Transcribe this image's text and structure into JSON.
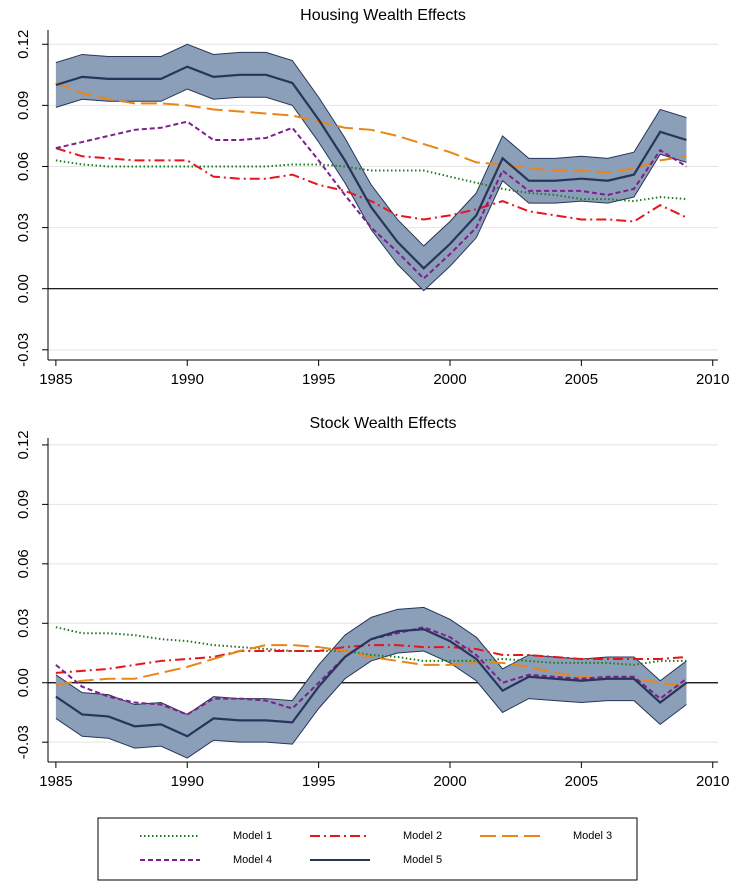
{
  "chart_data": [
    {
      "type": "line",
      "title": "Housing Wealth Effects",
      "x": [
        1985,
        1986,
        1987,
        1988,
        1989,
        1990,
        1991,
        1992,
        1993,
        1994,
        1995,
        1996,
        1997,
        1998,
        1999,
        2000,
        2001,
        2002,
        2003,
        2004,
        2005,
        2006,
        2007,
        2008,
        2009
      ],
      "xlim": [
        1984.7,
        2010.2
      ],
      "xticks": [
        1985,
        1990,
        1995,
        2000,
        2005,
        2010
      ],
      "ylim": [
        -0.035,
        0.127
      ],
      "yticks": [
        {
          "value": -0.03,
          "label": "-0.03"
        },
        {
          "value": 0,
          "label": "0.00"
        },
        {
          "value": 0.03,
          "label": "0.03"
        },
        {
          "value": 0.06,
          "label": "0.06"
        },
        {
          "value": 0.09,
          "label": "0.09"
        },
        {
          "value": 0.12,
          "label": "0.12"
        }
      ],
      "grid": true,
      "series": [
        {
          "name": "Model 1",
          "color": "#1e7a1e",
          "style": "dotted",
          "values": [
            0.063,
            0.061,
            0.06,
            0.06,
            0.06,
            0.06,
            0.06,
            0.06,
            0.06,
            0.061,
            0.061,
            0.06,
            0.058,
            0.058,
            0.058,
            0.055,
            0.052,
            0.049,
            0.047,
            0.046,
            0.044,
            0.044,
            0.043,
            0.045,
            0.044
          ]
        },
        {
          "name": "Model 2",
          "color": "#e8141c",
          "style": "dashdot",
          "values": [
            0.069,
            0.065,
            0.064,
            0.063,
            0.063,
            0.063,
            0.055,
            0.054,
            0.054,
            0.056,
            0.051,
            0.048,
            0.043,
            0.036,
            0.034,
            0.036,
            0.039,
            0.043,
            0.038,
            0.036,
            0.034,
            0.034,
            0.033,
            0.041,
            0.035
          ]
        },
        {
          "name": "Model 3",
          "color": "#e8861a",
          "style": "longdash",
          "values": [
            0.101,
            0.096,
            0.093,
            0.091,
            0.091,
            0.09,
            0.088,
            0.087,
            0.086,
            0.085,
            0.082,
            0.079,
            0.078,
            0.075,
            0.071,
            0.067,
            0.062,
            0.061,
            0.059,
            0.058,
            0.058,
            0.057,
            0.059,
            0.063,
            0.065
          ]
        },
        {
          "name": "Model 4",
          "color": "#7d1f8e",
          "style": "dash",
          "values": [
            0.069,
            0.072,
            0.075,
            0.078,
            0.079,
            0.082,
            0.073,
            0.073,
            0.074,
            0.079,
            0.063,
            0.046,
            0.03,
            0.018,
            0.005,
            0.017,
            0.03,
            0.058,
            0.048,
            0.048,
            0.048,
            0.046,
            0.049,
            0.068,
            0.06
          ]
        },
        {
          "name": "Model 5",
          "color": "#27355a",
          "style": "solid",
          "band_color": "#8c9fb8",
          "values": [
            0.1,
            0.104,
            0.103,
            0.103,
            0.103,
            0.109,
            0.104,
            0.105,
            0.105,
            0.101,
            0.083,
            0.063,
            0.04,
            0.023,
            0.01,
            0.022,
            0.036,
            0.064,
            0.053,
            0.053,
            0.054,
            0.053,
            0.056,
            0.077,
            0.073
          ],
          "band": {
            "upper": [
              0.111,
              0.115,
              0.114,
              0.114,
              0.114,
              0.12,
              0.115,
              0.116,
              0.116,
              0.112,
              0.094,
              0.074,
              0.051,
              0.034,
              0.021,
              0.033,
              0.047,
              0.075,
              0.064,
              0.064,
              0.065,
              0.064,
              0.067,
              0.088,
              0.084
            ],
            "lower": [
              0.089,
              0.093,
              0.092,
              0.092,
              0.092,
              0.098,
              0.093,
              0.094,
              0.094,
              0.09,
              0.072,
              0.052,
              0.029,
              0.012,
              -0.001,
              0.011,
              0.025,
              0.053,
              0.042,
              0.042,
              0.043,
              0.042,
              0.045,
              0.066,
              0.062
            ]
          }
        }
      ]
    },
    {
      "type": "line",
      "title": "Stock Wealth Effects",
      "x": [
        1985,
        1986,
        1987,
        1988,
        1989,
        1990,
        1991,
        1992,
        1993,
        1994,
        1995,
        1996,
        1997,
        1998,
        1999,
        2000,
        2001,
        2002,
        2003,
        2004,
        2005,
        2006,
        2007,
        2008,
        2009
      ],
      "xlim": [
        1984.7,
        2010.2
      ],
      "xticks": [
        1985,
        1990,
        1995,
        2000,
        2005,
        2010
      ],
      "ylim": [
        -0.04,
        0.1235
      ],
      "yticks": [
        {
          "value": -0.03,
          "label": "-0.03"
        },
        {
          "value": 0,
          "label": "0.00"
        },
        {
          "value": 0.03,
          "label": "0.03"
        },
        {
          "value": 0.06,
          "label": "0.06"
        },
        {
          "value": 0.09,
          "label": "0.09"
        },
        {
          "value": 0.12,
          "label": "0.12"
        }
      ],
      "grid": true,
      "series": [
        {
          "values": [
            0.028,
            0.025,
            0.025,
            0.024,
            0.022,
            0.021,
            0.019,
            0.018,
            0.017,
            0.016,
            0.016,
            0.016,
            0.014,
            0.013,
            0.011,
            0.011,
            0.011,
            0.012,
            0.011,
            0.01,
            0.01,
            0.01,
            0.009,
            0.011,
            0.011
          ]
        },
        {
          "values": [
            0.005,
            0.006,
            0.007,
            0.009,
            0.011,
            0.012,
            0.013,
            0.016,
            0.016,
            0.016,
            0.016,
            0.018,
            0.019,
            0.019,
            0.018,
            0.018,
            0.017,
            0.014,
            0.014,
            0.013,
            0.012,
            0.012,
            0.012,
            0.012,
            0.013
          ]
        },
        {
          "values": [
            -0.001,
            0.001,
            0.002,
            0.002,
            0.005,
            0.008,
            0.012,
            0.016,
            0.019,
            0.019,
            0.018,
            0.016,
            0.013,
            0.011,
            0.009,
            0.009,
            0.01,
            0.01,
            0.008,
            0.005,
            0.003,
            0.002,
            0.002,
            0,
            -0.002
          ]
        },
        {
          "values": [
            0.009,
            -0.002,
            -0.007,
            -0.01,
            -0.011,
            -0.016,
            -0.008,
            -0.008,
            -0.009,
            -0.013,
            0,
            0.013,
            0.022,
            0.025,
            0.028,
            0.023,
            0.014,
            0,
            0.004,
            0.003,
            0.002,
            0.003,
            0.003,
            -0.008,
            0.002
          ]
        },
        {
          "values": [
            -0.007,
            -0.016,
            -0.017,
            -0.022,
            -0.021,
            -0.027,
            -0.018,
            -0.019,
            -0.019,
            -0.02,
            -0.002,
            0.013,
            0.022,
            0.026,
            0.027,
            0.021,
            0.012,
            -0.004,
            0.003,
            0.002,
            0.001,
            0.002,
            0.002,
            -0.01,
            0
          ],
          "band": {
            "upper": [
              0.004,
              -0.005,
              -0.006,
              -0.011,
              -0.01,
              -0.016,
              -0.007,
              -0.008,
              -0.008,
              -0.009,
              0.009,
              0.024,
              0.033,
              0.037,
              0.038,
              0.032,
              0.023,
              0.007,
              0.014,
              0.013,
              0.012,
              0.013,
              0.013,
              0.001,
              0.011
            ],
            "lower": [
              -0.018,
              -0.027,
              -0.028,
              -0.033,
              -0.032,
              -0.038,
              -0.029,
              -0.03,
              -0.03,
              -0.031,
              -0.013,
              0.002,
              0.011,
              0.015,
              0.016,
              0.01,
              0.001,
              -0.015,
              -0.008,
              -0.009,
              -0.01,
              -0.009,
              -0.009,
              -0.021,
              -0.011
            ]
          }
        }
      ]
    }
  ]
}
